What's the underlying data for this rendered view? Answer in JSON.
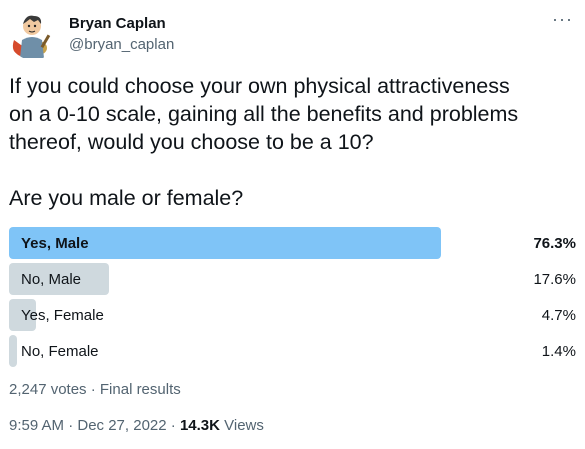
{
  "author": {
    "name": "Bryan Caplan",
    "handle": "@bryan_caplan",
    "avatar_icon": "cartoon-avatar-icon",
    "more_icon": "more-options-icon"
  },
  "tweet": {
    "text": "If you could choose your own physical attractiveness\non a 0-10 scale, gaining all the benefits and problems\nthereof, would you choose to be a 10?\n\nAre you male or female?"
  },
  "poll": {
    "options": [
      {
        "label": "Yes, Male",
        "percent_text": "76.3%",
        "percent": 76.3,
        "winner": true
      },
      {
        "label": "No, Male",
        "percent_text": "17.6%",
        "percent": 17.6,
        "winner": false
      },
      {
        "label": "Yes, Female",
        "percent_text": "4.7%",
        "percent": 4.7,
        "winner": false
      },
      {
        "label": "No, Female",
        "percent_text": "1.4%",
        "percent": 1.4,
        "winner": false
      }
    ],
    "summary": "2,247 votes · Final results"
  },
  "footer": {
    "timestamp": "9:59 AM · Dec 27, 2022 · ",
    "views_count": "14.3K",
    "views_label": " Views"
  },
  "colors": {
    "winner_bar": "#7fc4f7",
    "other_bar": "#cfd9de",
    "secondary_text": "#536471"
  }
}
